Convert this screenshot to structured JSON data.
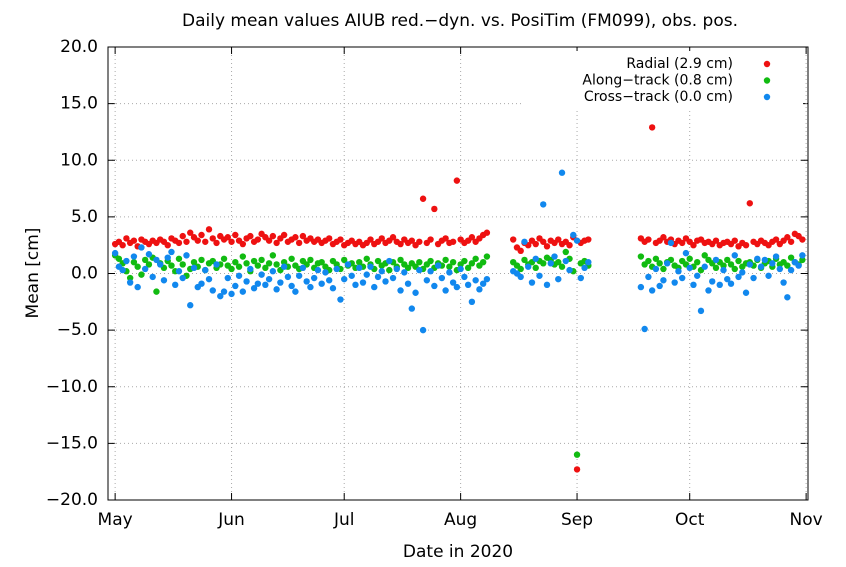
{
  "chart_data": {
    "type": "scatter",
    "title": "Daily mean values AIUB red.−dyn. vs. PosiTim (FM099), obs. pos.",
    "xlabel": "Date in 2020",
    "ylabel": "Mean [cm]",
    "xlim": [
      120.1,
      306.5
    ],
    "ylim": [
      -20,
      20
    ],
    "xticks": [
      {
        "value": 122,
        "label": "May"
      },
      {
        "value": 153,
        "label": "Jun"
      },
      {
        "value": 183,
        "label": "Jul"
      },
      {
        "value": 214,
        "label": "Aug"
      },
      {
        "value": 245,
        "label": "Sep"
      },
      {
        "value": 275,
        "label": "Oct"
      },
      {
        "value": 306,
        "label": "Nov"
      }
    ],
    "yticks": [
      {
        "value": -20,
        "label": "−20.0"
      },
      {
        "value": -15,
        "label": "−15.0"
      },
      {
        "value": -10,
        "label": "−10.0"
      },
      {
        "value": -5,
        "label": "−5.0"
      },
      {
        "value": 0,
        "label": "0.0"
      },
      {
        "value": 5,
        "label": "5.0"
      },
      {
        "value": 10,
        "label": "10.0"
      },
      {
        "value": 15,
        "label": "15.0"
      },
      {
        "value": 20,
        "label": "20.0"
      }
    ],
    "grid": true,
    "legend": "top-right",
    "x": [
      122,
      123,
      124,
      125,
      126,
      127,
      128,
      129,
      130,
      131,
      132,
      133,
      134,
      135,
      136,
      137,
      138,
      139,
      140,
      141,
      142,
      143,
      144,
      145,
      146,
      147,
      148,
      149,
      150,
      151,
      152,
      153,
      154,
      155,
      156,
      157,
      158,
      159,
      160,
      161,
      162,
      163,
      164,
      165,
      166,
      167,
      168,
      169,
      170,
      171,
      172,
      173,
      174,
      175,
      176,
      177,
      178,
      179,
      180,
      181,
      182,
      183,
      184,
      185,
      186,
      187,
      188,
      189,
      190,
      191,
      192,
      193,
      194,
      195,
      196,
      197,
      198,
      199,
      200,
      201,
      202,
      203,
      204,
      205,
      206,
      207,
      208,
      209,
      210,
      211,
      212,
      213,
      214,
      215,
      216,
      217,
      218,
      219,
      220,
      221,
      228,
      229,
      230,
      231,
      232,
      233,
      234,
      235,
      236,
      237,
      238,
      239,
      240,
      241,
      242,
      243,
      244,
      245,
      246,
      247,
      248,
      262,
      263,
      264,
      265,
      266,
      267,
      268,
      269,
      270,
      271,
      272,
      273,
      274,
      275,
      276,
      277,
      278,
      279,
      280,
      281,
      282,
      283,
      284,
      285,
      286,
      287,
      288,
      289,
      290,
      291,
      292,
      293,
      294,
      295,
      296,
      297,
      298,
      299,
      300,
      301,
      302,
      303,
      304,
      305
    ],
    "series": [
      {
        "name": "Radial (2.9 cm)",
        "color": "#ee1111",
        "values": [
          2.6,
          2.8,
          2.5,
          3.1,
          2.7,
          2.9,
          2.4,
          3.0,
          2.8,
          2.6,
          2.9,
          2.7,
          3.0,
          2.8,
          2.5,
          3.1,
          2.9,
          2.7,
          3.3,
          2.8,
          3.6,
          3.2,
          2.9,
          3.4,
          2.8,
          3.9,
          3.1,
          2.7,
          3.3,
          3.0,
          3.2,
          2.8,
          3.4,
          2.9,
          2.6,
          3.1,
          3.3,
          2.8,
          3.0,
          3.5,
          3.2,
          2.9,
          3.3,
          2.7,
          3.1,
          3.4,
          2.8,
          3.0,
          3.2,
          2.7,
          3.3,
          2.9,
          3.1,
          2.8,
          3.0,
          2.7,
          2.9,
          3.1,
          2.6,
          2.8,
          3.0,
          2.5,
          2.7,
          2.9,
          2.6,
          2.8,
          2.5,
          2.7,
          3.0,
          2.6,
          2.8,
          3.1,
          2.7,
          2.9,
          3.2,
          2.8,
          2.6,
          3.0,
          2.7,
          2.9,
          2.5,
          2.8,
          6.6,
          2.7,
          3.0,
          5.7,
          2.6,
          2.9,
          3.1,
          2.7,
          2.8,
          8.2,
          3.0,
          2.7,
          2.9,
          3.2,
          2.8,
          3.1,
          3.4,
          3.6,
          3.0,
          2.3,
          2.0,
          2.7,
          2.5,
          2.9,
          2.6,
          3.1,
          2.8,
          2.4,
          2.9,
          2.7,
          3.0,
          2.6,
          2.8,
          2.5,
          3.2,
          -17.3,
          2.7,
          2.9,
          3.0,
          3.1,
          2.8,
          3.0,
          12.9,
          2.7,
          2.9,
          3.2,
          2.8,
          3.0,
          2.6,
          2.9,
          2.7,
          3.1,
          2.8,
          2.5,
          2.9,
          3.0,
          2.7,
          2.8,
          2.6,
          2.9,
          2.5,
          2.7,
          2.8,
          2.6,
          2.9,
          2.4,
          2.7,
          2.5,
          6.2,
          2.8,
          2.6,
          2.9,
          2.7,
          2.5,
          2.8,
          3.0,
          2.6,
          2.9,
          3.2,
          2.8,
          3.5,
          3.3,
          3.0
        ]
      },
      {
        "name": "Along−track (0.8 cm)",
        "color": "#11bb11",
        "values": [
          1.6,
          1.3,
          0.9,
          0.2,
          -0.4,
          1.0,
          0.6,
          -0.1,
          1.2,
          0.8,
          1.4,
          -1.6,
          0.9,
          0.5,
          1.1,
          0.7,
          0.2,
          1.3,
          0.8,
          -0.2,
          0.4,
          1.0,
          0.6,
          1.2,
          0.3,
          0.9,
          1.1,
          0.5,
          0.8,
          1.3,
          0.7,
          0.4,
          1.0,
          0.6,
          1.5,
          0.9,
          0.2,
          1.1,
          0.7,
          1.2,
          0.5,
          0.9,
          1.6,
          0.8,
          0.3,
          1.0,
          0.6,
          1.3,
          0.7,
          0.4,
          1.1,
          0.8,
          1.2,
          0.5,
          0.9,
          1.0,
          0.6,
          0.3,
          1.1,
          0.8,
          0.4,
          1.2,
          0.7,
          0.9,
          0.5,
          1.0,
          0.6,
          1.3,
          0.8,
          0.4,
          1.1,
          0.7,
          0.9,
          0.3,
          1.0,
          0.6,
          1.2,
          0.8,
          0.5,
          0.9,
          0.6,
          1.0,
          0.4,
          0.8,
          1.1,
          0.5,
          0.9,
          0.7,
          1.2,
          0.6,
          1.0,
          0.3,
          0.8,
          1.1,
          0.5,
          0.9,
          1.3,
          0.7,
          1.0,
          1.5,
          1.0,
          0.7,
          0.4,
          1.2,
          0.8,
          1.0,
          0.5,
          1.1,
          0.9,
          1.4,
          1.2,
          0.8,
          1.0,
          0.6,
          1.9,
          1.3,
          0.2,
          -16.0,
          0.9,
          1.1,
          0.7,
          1.5,
          0.8,
          1.1,
          0.6,
          1.3,
          0.9,
          0.4,
          1.0,
          1.2,
          0.7,
          0.5,
          1.1,
          0.8,
          1.3,
          0.6,
          1.0,
          0.3,
          1.6,
          1.2,
          0.9,
          0.5,
          1.0,
          0.7,
          1.2,
          0.8,
          0.4,
          1.1,
          0.6,
          0.9,
          1.0,
          0.7,
          1.2,
          0.5,
          0.9,
          1.1,
          0.6,
          1.3,
          0.8,
          1.0,
          0.7,
          1.4,
          1.0,
          0.8,
          1.2
        ]
      },
      {
        "name": "Cross−track (0.0 cm)",
        "color": "#1188ee",
        "values": [
          1.8,
          0.6,
          0.3,
          1.1,
          -0.8,
          1.5,
          -1.2,
          2.3,
          0.4,
          1.7,
          -0.3,
          1.2,
          0.8,
          -0.6,
          1.4,
          1.9,
          -1.0,
          0.2,
          -0.4,
          1.6,
          -2.8,
          0.5,
          -1.2,
          -0.9,
          0.3,
          -0.5,
          -1.5,
          0.8,
          -2.0,
          -1.6,
          -0.4,
          -1.8,
          -1.1,
          -0.2,
          -1.6,
          -0.7,
          0.4,
          -1.3,
          -0.9,
          -0.1,
          -1.0,
          -0.5,
          0.2,
          -1.4,
          -0.8,
          0.6,
          -0.3,
          -1.1,
          -1.6,
          -0.2,
          0.5,
          -0.7,
          -1.2,
          -0.4,
          0.3,
          -0.9,
          0.1,
          -0.6,
          -1.3,
          0.4,
          -2.3,
          -0.5,
          0.8,
          -0.2,
          -1.0,
          0.5,
          -0.8,
          -0.1,
          0.6,
          -1.2,
          -0.3,
          0.2,
          -0.7,
          1.1,
          -0.4,
          0.4,
          -1.5,
          0.1,
          -0.9,
          -3.1,
          -1.7,
          0.3,
          -5.0,
          -0.6,
          0.2,
          -1.1,
          0.7,
          -0.4,
          -1.5,
          0.1,
          -0.8,
          -1.2,
          0.4,
          -0.3,
          -1.0,
          -2.5,
          -0.6,
          -1.4,
          -0.9,
          -0.5,
          0.2,
          0.0,
          -0.3,
          2.8,
          0.6,
          -0.8,
          1.3,
          -0.2,
          6.1,
          -1.0,
          0.9,
          1.5,
          -0.5,
          8.9,
          1.1,
          0.3,
          3.4,
          2.9,
          -0.4,
          0.5,
          1.0,
          -1.2,
          -4.9,
          -0.3,
          -1.5,
          0.4,
          -1.1,
          -0.6,
          0.9,
          2.7,
          -0.8,
          0.2,
          -0.4,
          1.8,
          0.5,
          -1.0,
          -0.2,
          -3.3,
          0.6,
          -1.5,
          -0.7,
          1.2,
          -1.0,
          0.3,
          -0.5,
          -0.9,
          1.6,
          -0.3,
          0.1,
          -1.7,
          0.8,
          -0.4,
          1.3,
          0.6,
          1.2,
          -0.2,
          0.9,
          1.5,
          0.4,
          -0.8,
          -2.1,
          0.3,
          1.0,
          0.7,
          1.6
        ]
      }
    ]
  }
}
